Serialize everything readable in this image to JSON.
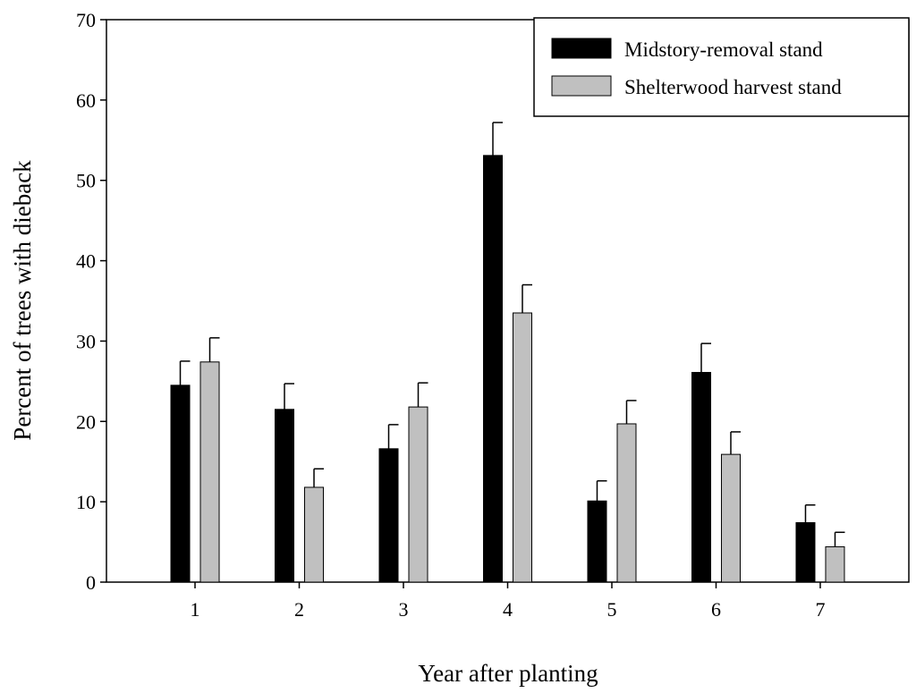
{
  "chart_data": {
    "type": "bar",
    "title": "",
    "xlabel": "Year after planting",
    "ylabel": "Percent of trees with dieback",
    "ylim": [
      0,
      70
    ],
    "yticks": [
      "0",
      "10",
      "20",
      "30",
      "40",
      "50",
      "60",
      "70"
    ],
    "categories": [
      "1",
      "2",
      "3",
      "4",
      "5",
      "6",
      "7"
    ],
    "legend_position": "top-right",
    "series": [
      {
        "name": "Midstory-removal stand",
        "color": "#000000",
        "values": [
          24.5,
          21.5,
          16.6,
          53.1,
          10.1,
          26.1,
          7.4
        ],
        "errors": [
          3.0,
          3.2,
          3.0,
          4.1,
          2.5,
          3.6,
          2.2
        ]
      },
      {
        "name": "Shelterwood harvest stand",
        "color": "#c0c0c0",
        "values": [
          27.4,
          11.8,
          21.8,
          33.5,
          19.7,
          15.9,
          4.4
        ],
        "errors": [
          3.0,
          2.3,
          3.0,
          3.5,
          2.9,
          2.8,
          1.8
        ]
      }
    ]
  }
}
